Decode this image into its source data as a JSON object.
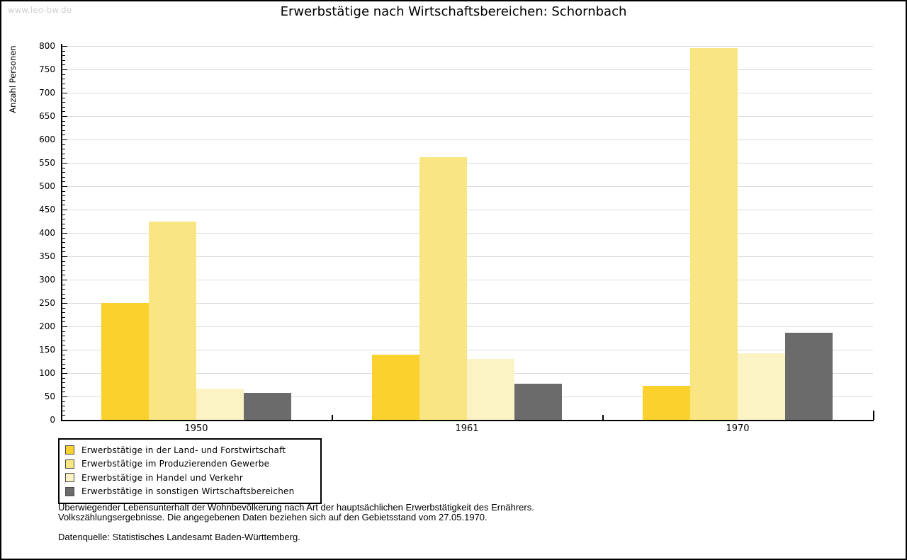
{
  "watermark": "www.leo-bw.de",
  "chart_data": {
    "type": "bar",
    "title": "Erwerbstätige nach Wirtschaftsbereichen: Schornbach",
    "xlabel": "",
    "ylabel": "Anzahl Personen",
    "ylim": [
      0,
      800
    ],
    "ytick_step": 50,
    "grid": true,
    "legend_position": "bottom-left",
    "categories": [
      "1950",
      "1961",
      "1970"
    ],
    "series": [
      {
        "name": "Erwerbstätige in der Land- und Forstwirtschaft",
        "color": "#fbd12d",
        "values": [
          250,
          140,
          72
        ]
      },
      {
        "name": "Erwerbstätige im Produzierenden Gewerbe",
        "color": "#fae583",
        "values": [
          425,
          562,
          795
        ]
      },
      {
        "name": "Erwerbstätige in Handel und Verkehr",
        "color": "#fcf3c5",
        "values": [
          66,
          131,
          142
        ]
      },
      {
        "name": "Erwerbstätige in sonstigen Wirtschaftsbereichen",
        "color": "#6b6b6b",
        "values": [
          57,
          78,
          187
        ]
      }
    ]
  },
  "footer": {
    "line1": "Überwiegender Lebensunterhalt der Wohnbevölkerung nach Art der hauptsächlichen Erwerbstätigkeit des Ernährers.",
    "line2": "Volkszählungsergebnisse. Die angegebenen Daten beziehen sich auf den Gebietsstand vom 27.05.1970.",
    "source": "Datenquelle: Statistisches Landesamt Baden-Württemberg."
  },
  "colors": {
    "grid": "#dcdcdc",
    "axis": "#000000",
    "watermark": "#cccccc",
    "swatch_border": "#4d4d4d"
  }
}
